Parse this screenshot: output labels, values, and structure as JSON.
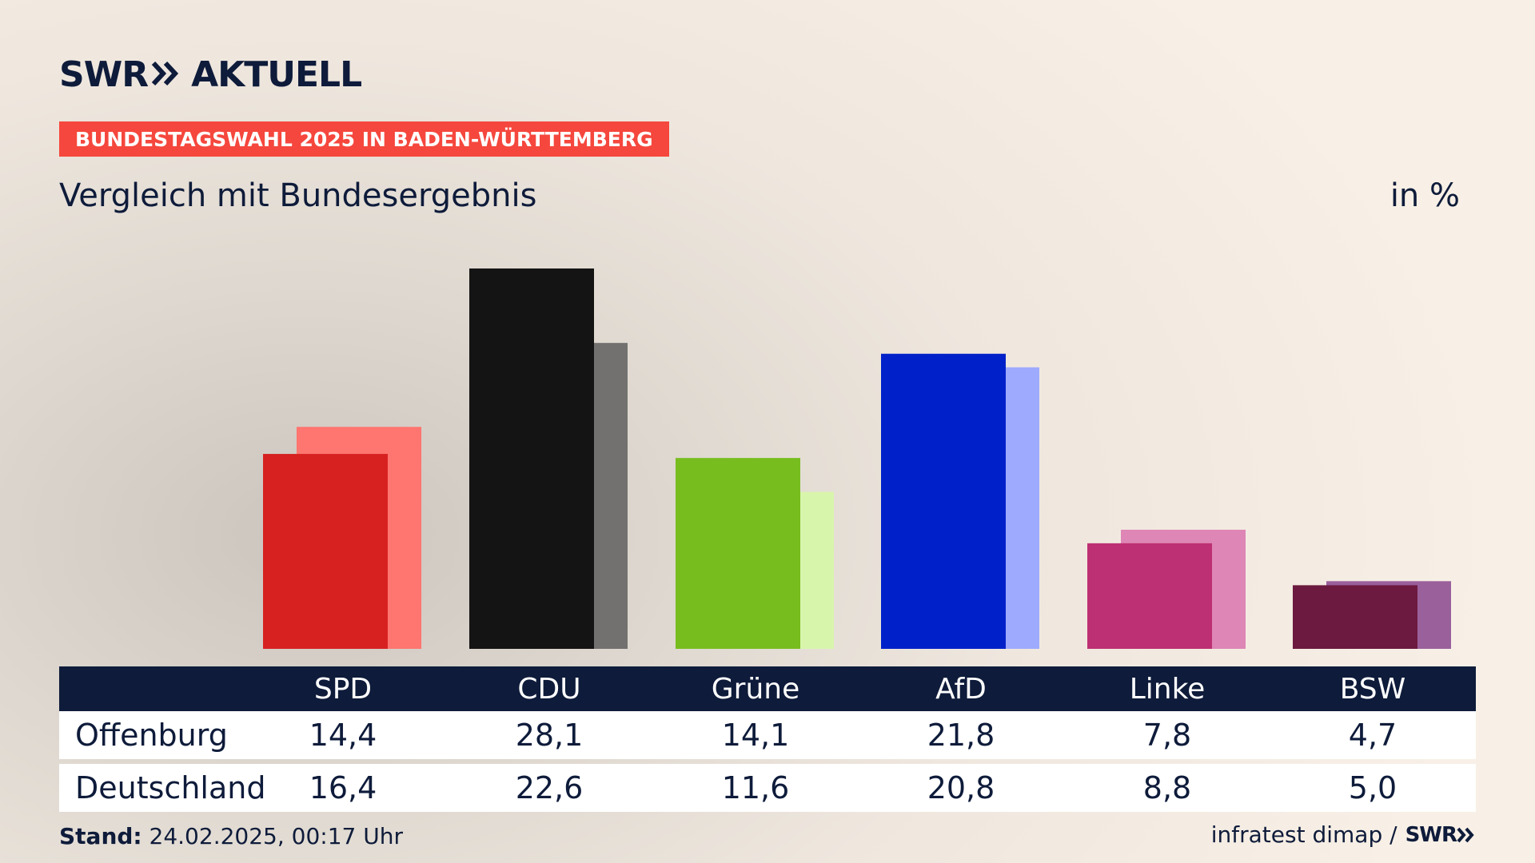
{
  "header": {
    "logo_swr": "SWR",
    "logo_brand": "AKTUELL",
    "badge": "BUNDESTAGSWAHL 2025 IN BADEN-WÜRTTEMBERG",
    "subtitle": "Vergleich mit Bundesergebnis",
    "unit": "in %"
  },
  "colors": {
    "navy": "#0e1b3a",
    "badge": "#f5473d"
  },
  "chart_data": {
    "type": "bar",
    "title": "Vergleich mit Bundesergebnis",
    "ylabel": "in %",
    "ylim": [
      0,
      32
    ],
    "categories": [
      "SPD",
      "CDU",
      "Grüne",
      "AfD",
      "Linke",
      "BSW"
    ],
    "series": [
      {
        "name": "Offenburg",
        "values": [
          14.4,
          28.1,
          14.1,
          21.8,
          7.8,
          4.7
        ],
        "labels": [
          "14,4",
          "28,1",
          "14,1",
          "21,8",
          "7,8",
          "4,7"
        ],
        "colors": [
          "#d62120",
          "#141414",
          "#78bd1e",
          "#0021c9",
          "#bd3073",
          "#6c1a3f"
        ]
      },
      {
        "name": "Deutschland",
        "values": [
          16.4,
          22.6,
          11.6,
          20.8,
          8.8,
          5.0
        ],
        "labels": [
          "16,4",
          "22,6",
          "11,6",
          "20,8",
          "8,8",
          "5,0"
        ],
        "colors": [
          "#ff7570",
          "#727170",
          "#d8f5ac",
          "#9eaafe",
          "#de86b5",
          "#9a609b"
        ]
      }
    ]
  },
  "footer": {
    "stand_label": "Stand:",
    "stand_value": "24.02.2025, 00:17 Uhr",
    "source": "infratest dimap /",
    "source_logo": "SWR"
  }
}
